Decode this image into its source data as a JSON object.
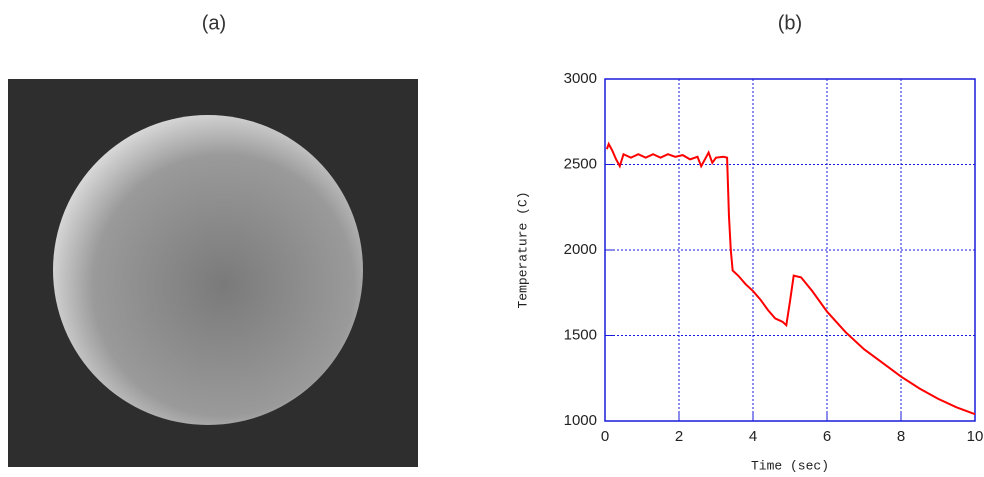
{
  "panel_labels": [
    "(a)",
    "(b)"
  ],
  "chart_data": {
    "type": "line",
    "xlabel": "Time (sec)",
    "ylabel": "Temperature (C)",
    "x": [
      0.05,
      0.1,
      0.2,
      0.3,
      0.4,
      0.5,
      0.7,
      0.9,
      1.1,
      1.3,
      1.5,
      1.7,
      1.9,
      2.1,
      2.3,
      2.5,
      2.6,
      2.8,
      2.9,
      3.0,
      3.2,
      3.3,
      3.35,
      3.4,
      3.45,
      3.6,
      3.8,
      4.0,
      4.2,
      4.4,
      4.6,
      4.8,
      4.9,
      5.0,
      5.1,
      5.3,
      5.6,
      6.0,
      6.5,
      7.0,
      7.5,
      8.0,
      8.5,
      9.0,
      9.5,
      10.0
    ],
    "values": [
      2590,
      2620,
      2580,
      2530,
      2490,
      2560,
      2540,
      2560,
      2540,
      2560,
      2540,
      2560,
      2545,
      2555,
      2530,
      2545,
      2490,
      2570,
      2510,
      2540,
      2545,
      2540,
      2200,
      2000,
      1880,
      1850,
      1800,
      1760,
      1710,
      1650,
      1600,
      1580,
      1560,
      1700,
      1850,
      1840,
      1760,
      1640,
      1520,
      1420,
      1340,
      1260,
      1190,
      1130,
      1080,
      1040
    ],
    "color": "#ff0000",
    "grid_color": "#1a1adb",
    "xlim": [
      0,
      10
    ],
    "xticks": [
      0,
      2,
      4,
      6,
      8,
      10
    ],
    "ylim": [
      1000,
      3000
    ],
    "yticks": [
      1000,
      1500,
      2000,
      2500,
      3000
    ],
    "grid": true
  }
}
